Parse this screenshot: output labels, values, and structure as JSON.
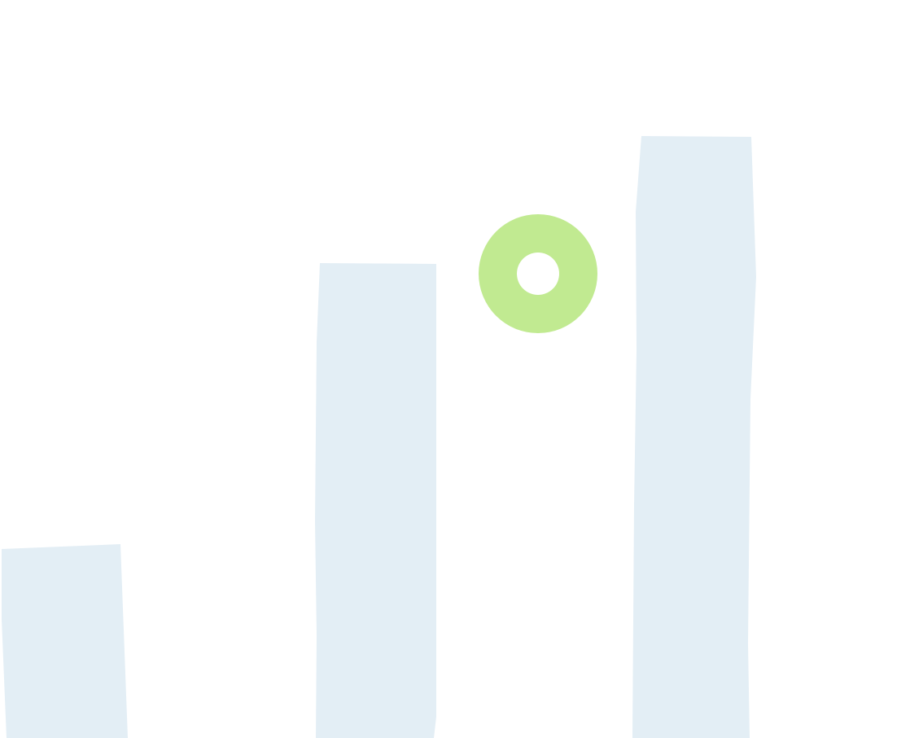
{
  "colors": {
    "background": "#ffffff",
    "bar_fill": "#e3eef5",
    "ring_fill": "#c1ea91",
    "ring_hole": "#ffffff"
  },
  "icons": {
    "ring": "ring-icon"
  }
}
